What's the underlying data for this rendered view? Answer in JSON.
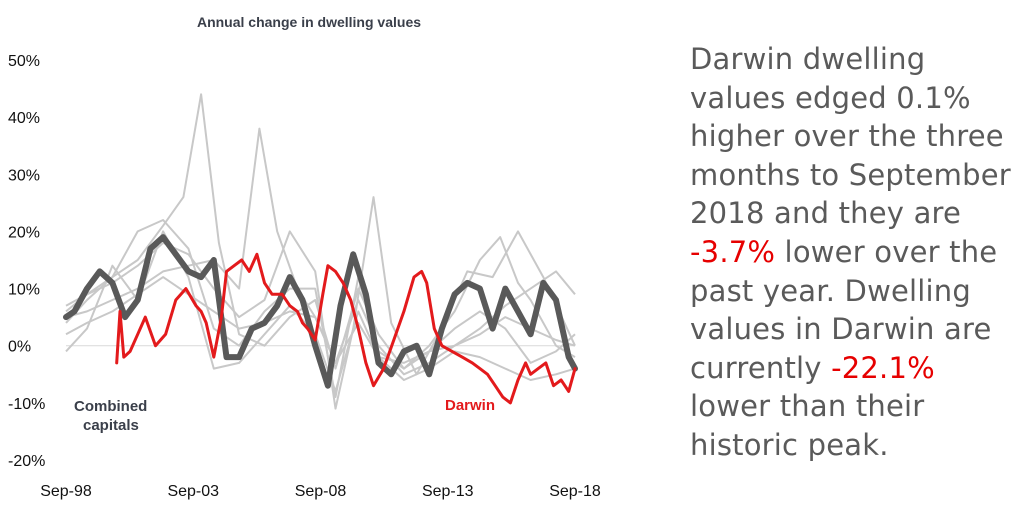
{
  "chart_data": {
    "type": "line",
    "title": "Annual change in dwelling values",
    "xlabel": "",
    "ylabel": "",
    "x_tick_labels": [
      "Sep-98",
      "Sep-03",
      "Sep-08",
      "Sep-13",
      "Sep-18"
    ],
    "x_range": [
      1998.67,
      2018.75
    ],
    "ylim": [
      -20,
      50
    ],
    "y_ticks": [
      -20,
      -10,
      0,
      10,
      20,
      30,
      40,
      50
    ],
    "y_tick_format": "percent",
    "grid": false,
    "colors": {
      "capital_cities": "#c8c8c8",
      "combined_capitals": "#595959",
      "darwin": "#e31a1c",
      "zero_line": "#d9d9d9"
    },
    "series": [
      {
        "name": "Combined capitals",
        "label": "Combined\ncapitals",
        "role": "combined",
        "x": [
          1998.67,
          1999.0,
          1999.5,
          2000.0,
          2000.5,
          2001.0,
          2001.5,
          2002.0,
          2002.5,
          2003.0,
          2003.5,
          2004.0,
          2004.5,
          2005.0,
          2005.5,
          2006.0,
          2006.5,
          2007.0,
          2007.5,
          2008.0,
          2008.5,
          2009.0,
          2009.5,
          2010.0,
          2010.5,
          2011.0,
          2011.5,
          2012.0,
          2012.5,
          2013.0,
          2013.5,
          2014.0,
          2014.5,
          2015.0,
          2015.5,
          2016.0,
          2016.5,
          2017.0,
          2017.5,
          2018.0,
          2018.5,
          2018.75
        ],
        "values": [
          5,
          6,
          10,
          13,
          11,
          5,
          8,
          17,
          19,
          16,
          13,
          12,
          15,
          -2,
          -2,
          3,
          4,
          7,
          12,
          8,
          0,
          -7,
          7,
          16,
          9,
          -3,
          -5,
          -1,
          0,
          -5,
          3,
          9,
          11,
          10,
          3,
          10,
          6,
          2,
          11,
          8,
          -2,
          -4
        ]
      },
      {
        "name": "Darwin",
        "label": "Darwin",
        "role": "highlight",
        "x": [
          2000.67,
          2000.8,
          2000.95,
          2001.2,
          2001.5,
          2001.8,
          2002.2,
          2002.6,
          2003.0,
          2003.4,
          2003.8,
          2004.0,
          2004.2,
          2004.5,
          2004.8,
          2005.0,
          2005.3,
          2005.6,
          2005.9,
          2006.2,
          2006.5,
          2006.8,
          2007.2,
          2007.5,
          2007.8,
          2008.0,
          2008.2,
          2008.5,
          2008.8,
          2009.0,
          2009.3,
          2009.6,
          2009.9,
          2010.2,
          2010.5,
          2010.8,
          2011.2,
          2011.6,
          2012.0,
          2012.4,
          2012.7,
          2012.9,
          2013.2,
          2013.5,
          2013.9,
          2014.3,
          2014.7,
          2015.0,
          2015.3,
          2015.6,
          2015.9,
          2016.2,
          2016.5,
          2016.8,
          2017.0,
          2017.3,
          2017.6,
          2017.9,
          2018.2,
          2018.5,
          2018.75
        ],
        "values": [
          -3,
          6,
          -2,
          -1,
          2,
          5,
          0,
          2,
          8,
          10,
          7,
          6,
          4,
          -2,
          5,
          13,
          14,
          15,
          13,
          16,
          11,
          9,
          9,
          7,
          6,
          4,
          3,
          1,
          9,
          14,
          13,
          11,
          8,
          3,
          -3,
          -7,
          -4,
          1,
          6,
          12,
          13,
          11,
          3,
          0,
          -1,
          -2,
          -3,
          -4,
          -5,
          -7,
          -9,
          -10,
          -6,
          -3,
          -5,
          -4,
          -3,
          -7,
          -6,
          -8,
          -4
        ]
      }
    ],
    "background_series": [
      {
        "x": [
          1998.67,
          1999.5,
          2000.5,
          2001.5,
          2002.5,
          2003.3,
          2004.0,
          2004.7,
          2005.5,
          2006.5,
          2007.5,
          2008.5,
          2009.3,
          2010.2,
          2011.0,
          2012.0,
          2013.0,
          2014.0,
          2015.0,
          2016.0,
          2017.0,
          2018.0,
          2018.75
        ],
        "values": [
          7,
          9,
          12,
          15,
          21,
          26,
          44,
          18,
          2,
          0,
          5,
          8,
          -4,
          10,
          2,
          -4,
          -1,
          0,
          2,
          5,
          3,
          1,
          0
        ]
      },
      {
        "x": [
          1998.67,
          1999.5,
          2000.5,
          2001.5,
          2002.5,
          2003.5,
          2004.5,
          2005.5,
          2006.3,
          2007.0,
          2007.8,
          2008.5,
          2009.3,
          2010.2,
          2011.0,
          2012.0,
          2013.0,
          2014.0,
          2015.0,
          2016.0,
          2017.0,
          2018.0,
          2018.75
        ],
        "values": [
          5,
          6,
          8,
          10,
          13,
          14,
          15,
          10,
          38,
          20,
          10,
          5,
          -3,
          8,
          0,
          -5,
          -3,
          0,
          3,
          7,
          10,
          13,
          9
        ]
      },
      {
        "x": [
          1998.67,
          1999.5,
          2000.5,
          2001.5,
          2002.5,
          2003.5,
          2004.5,
          2005.5,
          2006.5,
          2007.5,
          2008.5,
          2009.3,
          2010.2,
          2011.0,
          2012.0,
          2013.0,
          2014.0,
          2015.0,
          2015.8,
          2016.5,
          2017.0,
          2018.0,
          2018.75
        ],
        "values": [
          4,
          8,
          12,
          20,
          22,
          17,
          3,
          0,
          6,
          10,
          10,
          -9,
          12,
          -1,
          -4,
          0,
          6,
          15,
          19,
          11,
          8,
          0,
          -2
        ]
      },
      {
        "x": [
          1998.67,
          1999.5,
          2000.5,
          2001.5,
          2002.5,
          2003.5,
          2004.5,
          2005.5,
          2006.5,
          2007.5,
          2008.5,
          2009.3,
          2010.0,
          2010.8,
          2011.5,
          2012.5,
          2013.5,
          2014.5,
          2015.5,
          2016.5,
          2017.5,
          2018.75
        ],
        "values": [
          6,
          9,
          11,
          14,
          18,
          16,
          10,
          5,
          8,
          20,
          13,
          -11,
          3,
          26,
          4,
          -5,
          3,
          13,
          12,
          20,
          12,
          0
        ]
      },
      {
        "x": [
          1998.67,
          1999.5,
          2000.5,
          2001.5,
          2002.5,
          2003.5,
          2004.5,
          2005.5,
          2006.5,
          2007.5,
          2008.5,
          2009.3,
          2010.2,
          2011.0,
          2012.0,
          2013.0,
          2014.0,
          2015.0,
          2016.0,
          2017.0,
          2018.0,
          2018.75
        ],
        "values": [
          -1,
          3,
          14,
          8,
          20,
          12,
          -4,
          -3,
          2,
          7,
          2,
          -8,
          6,
          -2,
          -6,
          -4,
          -1,
          -2,
          -4,
          -6,
          -5,
          -4
        ]
      },
      {
        "x": [
          1998.67,
          1999.5,
          2000.5,
          2001.5,
          2002.5,
          2003.5,
          2004.5,
          2005.5,
          2006.5,
          2007.5,
          2008.5,
          2009.3,
          2010.2,
          2011.0,
          2012.0,
          2013.0,
          2014.0,
          2015.0,
          2016.0,
          2017.0,
          2018.0,
          2018.75
        ],
        "values": [
          2,
          4,
          6,
          9,
          12,
          9,
          6,
          3,
          4,
          6,
          5,
          -3,
          4,
          -2,
          -3,
          -1,
          3,
          6,
          3,
          -3,
          -1,
          2
        ]
      }
    ]
  },
  "commentary": {
    "part1": "Darwin dwelling values edged 0.1% higher over the three months to September 2018 and they are ",
    "figure1": "-3.7%",
    "part2": " lower over the past year. Dwelling values in Darwin are currently ",
    "figure2": "-22.1%",
    "part3": " lower than their historic peak."
  }
}
